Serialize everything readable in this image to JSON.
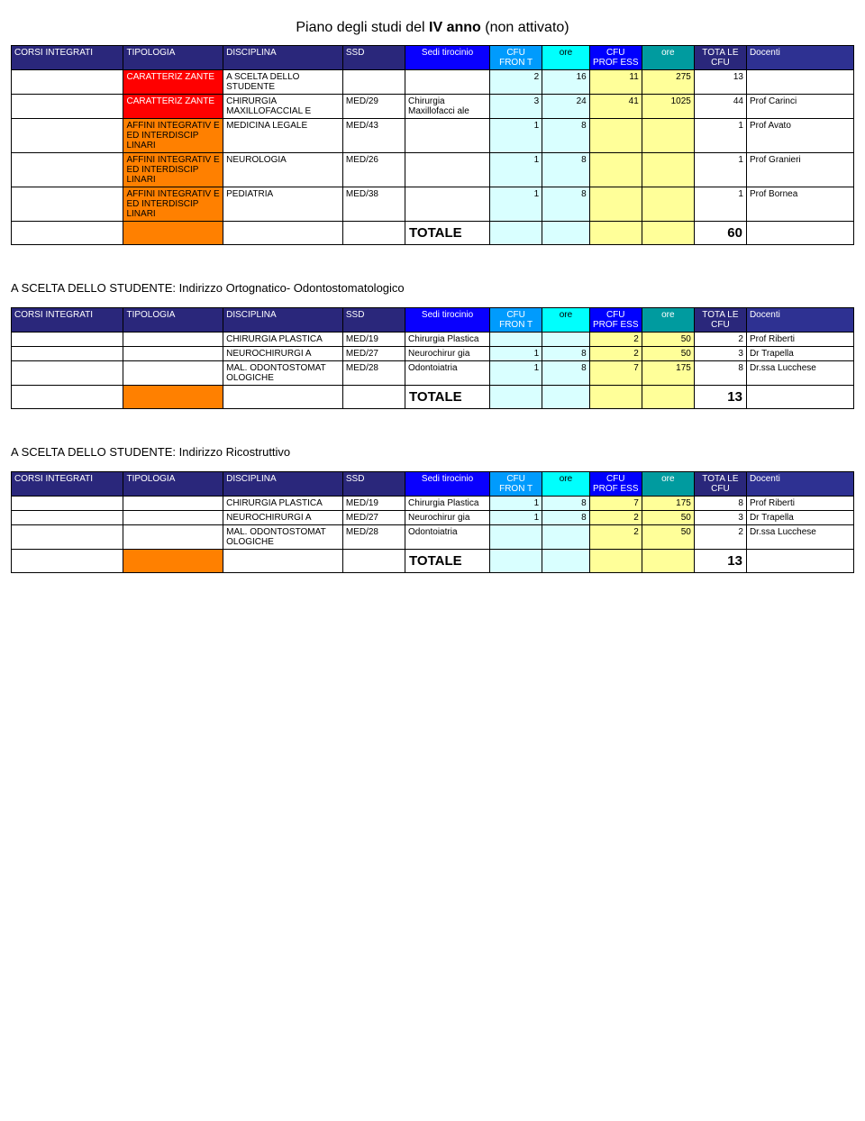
{
  "title": {
    "prefix": "Piano degli studi del ",
    "bold": "IV anno",
    "suffix": " (non attivato)"
  },
  "colors": {
    "hdr_corsi": "#2a277b",
    "hdr_sedi": "#0900fe",
    "hdr_cfuf": "#009bfd",
    "hdr_ore1": "#00fffd",
    "hdr_cfup": "#0000fe",
    "hdr_ore2": "#009b9f",
    "hdr_tot": "#2a277b",
    "hdr_doc": "#2e3192",
    "tipo_red": "#ff0000",
    "tipo_orange": "#ff8000",
    "cell_lightcyan": "#d9ffff",
    "cell_yellow": "#ffff99",
    "white_text": "#ffffff"
  },
  "headers": {
    "corsi": "CORSI INTEGRATI",
    "tipo": "TIPOLOGIA",
    "disc": "DISCIPLINA",
    "ssd": "SSD",
    "sedi": "Sedi tirocinio",
    "cfuf": "CFU FRON T",
    "ore1": "ore",
    "cfup": "CFU PROF ESS",
    "ore2": "ore",
    "tot": "TOTA LE CFU",
    "doc": "Docenti",
    "totale": "TOTALE"
  },
  "table1": {
    "rows": [
      {
        "tipo": "CARATTERIZ ZANTE",
        "tipo_kind": "red",
        "disc": "A SCELTA DELLO STUDENTE",
        "ssd": "",
        "sedi": "",
        "cfuf": "2",
        "ore1": "16",
        "cfup": "11",
        "ore2": "275",
        "tot": "13",
        "doc": ""
      },
      {
        "tipo": "CARATTERIZ ZANTE",
        "tipo_kind": "red",
        "disc": "CHIRURGIA MAXILLOFACCIAL E",
        "ssd": "MED/29",
        "sedi": "Chirurgia Maxillofacci ale",
        "cfuf": "3",
        "ore1": "24",
        "cfup": "41",
        "ore2": "1025",
        "tot": "44",
        "doc": "Prof Carinci"
      },
      {
        "tipo": "AFFINI INTEGRATIV E ED INTERDISCIP LINARI",
        "tipo_kind": "orange",
        "disc": "MEDICINA LEGALE",
        "ssd": "MED/43",
        "sedi": "",
        "cfuf": "1",
        "ore1": "8",
        "cfup": "",
        "ore2": "",
        "tot": "1",
        "doc": "Prof Avato"
      },
      {
        "tipo": "AFFINI INTEGRATIV E ED INTERDISCIP LINARI",
        "tipo_kind": "orange",
        "disc": "NEUROLOGIA",
        "ssd": "MED/26",
        "sedi": "",
        "cfuf": "1",
        "ore1": "8",
        "cfup": "",
        "ore2": "",
        "tot": "1",
        "doc": "Prof Granieri"
      },
      {
        "tipo": "AFFINI INTEGRATIV E ED INTERDISCIP LINARI",
        "tipo_kind": "orange",
        "disc": "PEDIATRIA",
        "ssd": "MED/38",
        "sedi": "",
        "cfuf": "1",
        "ore1": "8",
        "cfup": "",
        "ore2": "",
        "tot": "1",
        "doc": "Prof Bornea"
      }
    ],
    "total": "60"
  },
  "section2_title": "A SCELTA DELLO STUDENTE: Indirizzo Ortognatico- Odontostomatologico",
  "table2": {
    "rows": [
      {
        "tipo": "",
        "tipo_kind": "none",
        "disc": "CHIRURGIA PLASTICA",
        "ssd": "MED/19",
        "sedi": "Chirurgia Plastica",
        "cfuf": "",
        "ore1": "",
        "cfup": "2",
        "ore2": "50",
        "tot": "2",
        "doc": "Prof Riberti"
      },
      {
        "tipo": "",
        "tipo_kind": "none",
        "disc": "NEUROCHIRURGI A",
        "ssd": "MED/27",
        "sedi": "Neurochirur gia",
        "cfuf": "1",
        "ore1": "8",
        "cfup": "2",
        "ore2": "50",
        "tot": "3",
        "doc": "Dr Trapella"
      },
      {
        "tipo": "",
        "tipo_kind": "none",
        "disc": "MAL. ODONTOSTOMAT OLOGICHE",
        "ssd": "MED/28",
        "sedi": "Odontoiatria",
        "cfuf": "1",
        "ore1": "8",
        "cfup": "7",
        "ore2": "175",
        "tot": "8",
        "doc": "Dr.ssa Lucchese"
      }
    ],
    "total": "13"
  },
  "section3_title": "A SCELTA DELLO STUDENTE: Indirizzo Ricostruttivo",
  "table3": {
    "rows": [
      {
        "tipo": "",
        "tipo_kind": "none",
        "disc": "CHIRURGIA PLASTICA",
        "ssd": "MED/19",
        "sedi": "Chirurgia Plastica",
        "cfuf": "1",
        "ore1": "8",
        "cfup": "7",
        "ore2": "175",
        "tot": "8",
        "doc": "Prof Riberti"
      },
      {
        "tipo": "",
        "tipo_kind": "none",
        "disc": "NEUROCHIRURGI A",
        "ssd": "MED/27",
        "sedi": "Neurochirur gia",
        "cfuf": "1",
        "ore1": "8",
        "cfup": "2",
        "ore2": "50",
        "tot": "3",
        "doc": "Dr Trapella"
      },
      {
        "tipo": "",
        "tipo_kind": "none",
        "disc": "MAL. ODONTOSTOMAT OLOGICHE",
        "ssd": "MED/28",
        "sedi": "Odontoiatria",
        "cfuf": "",
        "ore1": "",
        "cfup": "2",
        "ore2": "50",
        "tot": "2",
        "doc": "Dr.ssa Lucchese"
      }
    ],
    "total": "13"
  }
}
